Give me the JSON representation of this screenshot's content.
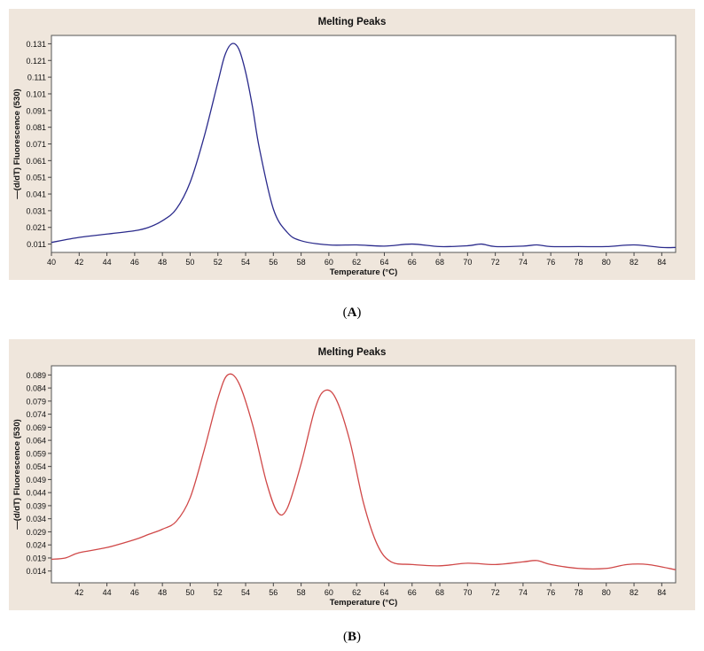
{
  "chart_data": [
    {
      "type": "line",
      "panel_label": "A",
      "title": "Melting Peaks",
      "xlabel": "Temperature (°C)",
      "ylabel": "—(d/dT) Fluorescence (530)",
      "xlim": [
        40,
        85
      ],
      "ylim": [
        0.006,
        0.136
      ],
      "x_ticks": [
        "40",
        "42",
        "44",
        "46",
        "48",
        "50",
        "52",
        "54",
        "56",
        "58",
        "60",
        "62",
        "64",
        "66",
        "68",
        "70",
        "72",
        "74",
        "76",
        "78",
        "80",
        "82",
        "84"
      ],
      "y_ticks": [
        "0.011",
        "0.021",
        "0.031",
        "0.041",
        "0.051",
        "0.061",
        "0.071",
        "0.081",
        "0.091",
        "0.101",
        "0.111",
        "0.121",
        "0.131"
      ],
      "grid": false,
      "legend": "none",
      "series": [
        {
          "color": "#2b2b8c",
          "x": [
            40,
            42,
            44,
            46,
            47,
            48,
            49,
            50,
            51,
            52,
            52.5,
            53,
            53.5,
            54,
            54.5,
            55,
            56,
            57,
            58,
            60,
            62,
            64,
            66,
            68,
            70,
            71,
            72,
            74,
            75,
            76,
            78,
            80,
            82,
            84,
            85
          ],
          "y": [
            0.012,
            0.015,
            0.017,
            0.019,
            0.021,
            0.025,
            0.032,
            0.048,
            0.075,
            0.108,
            0.124,
            0.131,
            0.128,
            0.114,
            0.093,
            0.068,
            0.032,
            0.018,
            0.013,
            0.0105,
            0.0105,
            0.0098,
            0.011,
            0.0095,
            0.01,
            0.011,
            0.0095,
            0.0098,
            0.0105,
            0.0095,
            0.0095,
            0.0095,
            0.0105,
            0.009,
            0.009
          ]
        }
      ]
    },
    {
      "type": "line",
      "panel_label": "B",
      "title": "Melting Peaks",
      "xlabel": "Temperature (°C)",
      "ylabel": "—(d/dT) Fluorescence (530)",
      "xlim": [
        40,
        85
      ],
      "ylim": [
        0.0095,
        0.0925
      ],
      "x_ticks": [
        "42",
        "44",
        "46",
        "48",
        "50",
        "52",
        "54",
        "56",
        "58",
        "60",
        "62",
        "64",
        "66",
        "68",
        "70",
        "72",
        "74",
        "76",
        "78",
        "80",
        "82",
        "84"
      ],
      "y_ticks": [
        "0.014",
        "0.019",
        "0.024",
        "0.029",
        "0.034",
        "0.039",
        "0.044",
        "0.049",
        "0.054",
        "0.059",
        "0.064",
        "0.069",
        "0.074",
        "0.079",
        "0.084",
        "0.089"
      ],
      "grid": false,
      "legend": "none",
      "series": [
        {
          "color": "#d04848",
          "x": [
            40,
            41,
            42,
            44,
            46,
            47,
            48,
            49,
            50,
            51,
            52,
            52.7,
            53.5,
            54.5,
            55.5,
            56.3,
            57,
            58,
            59,
            59.7,
            60.5,
            61.5,
            62.5,
            63.5,
            64.5,
            66,
            68,
            70,
            72,
            74,
            75,
            76,
            78,
            80,
            81.5,
            83,
            85
          ],
          "y": [
            0.0185,
            0.019,
            0.021,
            0.023,
            0.026,
            0.028,
            0.03,
            0.033,
            0.042,
            0.06,
            0.08,
            0.089,
            0.086,
            0.07,
            0.048,
            0.0365,
            0.038,
            0.055,
            0.076,
            0.083,
            0.08,
            0.064,
            0.04,
            0.024,
            0.0175,
            0.0165,
            0.016,
            0.017,
            0.0165,
            0.0175,
            0.018,
            0.0165,
            0.015,
            0.015,
            0.0165,
            0.0165,
            0.0145
          ]
        }
      ]
    }
  ],
  "captions": [
    "(A)",
    "(B)"
  ]
}
